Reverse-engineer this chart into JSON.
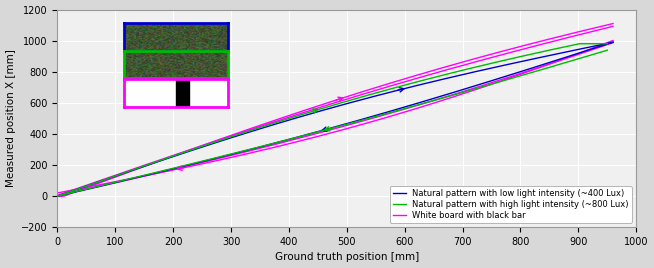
{
  "title": "",
  "xlabel": "Ground truth position [mm]",
  "ylabel": "Measured position X [mm]",
  "xlim": [
    0,
    1000
  ],
  "ylim": [
    -200,
    1200
  ],
  "xticks": [
    0,
    100,
    200,
    300,
    400,
    500,
    600,
    700,
    800,
    900,
    1000
  ],
  "yticks": [
    -200,
    0,
    200,
    400,
    600,
    800,
    1000,
    1200
  ],
  "blue_color": "#0000CC",
  "green_color": "#00BB00",
  "magenta_color": "#FF00FF",
  "legend_labels": [
    "Natural pattern with low light intensity (~400 Lux) ",
    "Natural pattern with high light intensity (~800 Lux)",
    "White board with black bar"
  ],
  "bg_outer": "#d8d8d8",
  "bg_axes": "#f0f0f0",
  "grid_color": "#ffffff",
  "figsize": [
    6.54,
    2.68
  ],
  "dpi": 100,
  "inset_img1_border": "#0000CC",
  "inset_img2_border": "#00BB00",
  "inset_img3_border": "#FF00FF"
}
